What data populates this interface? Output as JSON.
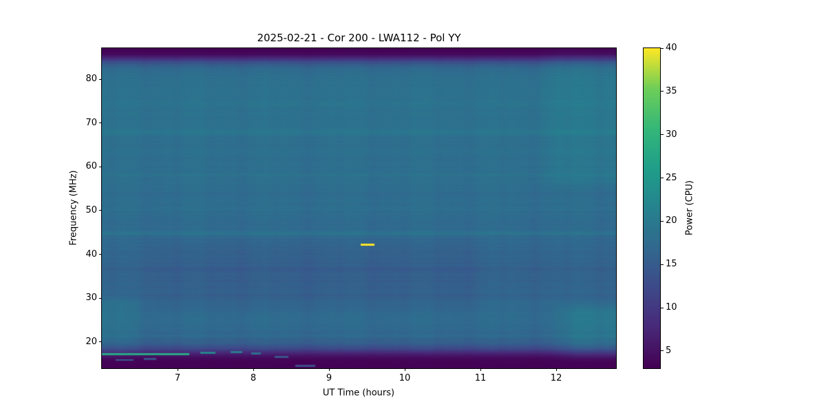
{
  "chart_data": {
    "type": "heatmap",
    "title": "2025-02-21 - Cor 200 - LWA112 - Pol YY",
    "xlabel": "UT Time (hours)",
    "ylabel": "Frequency (MHz)",
    "colorbar_label": "Power (CPU)",
    "x_range": [
      6.0,
      12.79
    ],
    "y_range": [
      14.0,
      87.1
    ],
    "x_ticks": [
      7,
      8,
      9,
      10,
      11,
      12
    ],
    "y_ticks": [
      20,
      30,
      40,
      50,
      60,
      70,
      80
    ],
    "colorbar_ticks": [
      5,
      10,
      15,
      20,
      25,
      30,
      35,
      40
    ],
    "value_range": [
      3,
      40
    ],
    "colormap": "viridis",
    "colormap_stops": [
      {
        "t": 0.0,
        "color": "#440154"
      },
      {
        "t": 0.125,
        "color": "#482878"
      },
      {
        "t": 0.25,
        "color": "#3e4989"
      },
      {
        "t": 0.375,
        "color": "#31688e"
      },
      {
        "t": 0.5,
        "color": "#26828e"
      },
      {
        "t": 0.625,
        "color": "#1f9e89"
      },
      {
        "t": 0.75,
        "color": "#35b779"
      },
      {
        "t": 0.875,
        "color": "#6ece58"
      },
      {
        "t": 1.0,
        "color": "#fde725"
      }
    ],
    "background": "#ffffff",
    "text_color": "#000000",
    "base_profile": [
      {
        "freq": 14.0,
        "power": 3.2
      },
      {
        "freq": 15.6,
        "power": 3.3
      },
      {
        "freq": 16.4,
        "power": 4.2
      },
      {
        "freq": 17.1,
        "power": 6.0
      },
      {
        "freq": 17.8,
        "power": 9.0
      },
      {
        "freq": 18.6,
        "power": 12.5
      },
      {
        "freq": 19.6,
        "power": 15.0
      },
      {
        "freq": 21.0,
        "power": 16.4
      },
      {
        "freq": 23.0,
        "power": 17.2
      },
      {
        "freq": 26.0,
        "power": 17.6
      },
      {
        "freq": 28.5,
        "power": 17.0
      },
      {
        "freq": 32.0,
        "power": 16.4
      },
      {
        "freq": 36.0,
        "power": 16.1
      },
      {
        "freq": 40.0,
        "power": 16.5
      },
      {
        "freq": 43.5,
        "power": 17.1
      },
      {
        "freq": 47.0,
        "power": 17.5
      },
      {
        "freq": 52.0,
        "power": 17.7
      },
      {
        "freq": 57.0,
        "power": 17.9
      },
      {
        "freq": 62.0,
        "power": 18.1
      },
      {
        "freq": 67.0,
        "power": 18.3
      },
      {
        "freq": 72.0,
        "power": 18.5
      },
      {
        "freq": 77.0,
        "power": 18.6
      },
      {
        "freq": 80.5,
        "power": 18.2
      },
      {
        "freq": 82.5,
        "power": 17.2
      },
      {
        "freq": 83.8,
        "power": 13.5
      },
      {
        "freq": 84.9,
        "power": 7.5
      },
      {
        "freq": 85.7,
        "power": 4.0
      },
      {
        "freq": 87.1,
        "power": 3.0
      }
    ],
    "stripes": [
      {
        "freq": 44.8,
        "sigma": 0.5,
        "delta": 1.8
      },
      {
        "freq": 68.0,
        "sigma": 0.6,
        "delta": 1.2
      },
      {
        "freq": 58.2,
        "sigma": 0.5,
        "delta": 0.9
      },
      {
        "freq": 50.5,
        "sigma": 0.4,
        "delta": 0.6
      },
      {
        "freq": 74.5,
        "sigma": 0.5,
        "delta": 0.6
      },
      {
        "freq": 36.8,
        "sigma": 0.45,
        "delta": -0.7
      },
      {
        "freq": 30.5,
        "sigma": 0.4,
        "delta": -0.5
      },
      {
        "freq": 21.3,
        "sigma": 0.4,
        "delta": 0.6
      },
      {
        "freq": 63.5,
        "sigma": 0.4,
        "delta": 0.5
      }
    ],
    "patches": [
      {
        "f_lo": 16.5,
        "f_hi": 28.0,
        "t_start": 12.1,
        "t_end": 13.4,
        "delta": 2.4
      },
      {
        "f_lo": 56.0,
        "f_hi": 86.0,
        "t_start": 11.85,
        "t_end": 13.4,
        "delta": 1.3
      },
      {
        "f_lo": 27.0,
        "f_hi": 43.0,
        "t_start": 6.7,
        "t_end": 11.0,
        "delta": -0.7
      },
      {
        "f_lo": 16.5,
        "f_hi": 30.0,
        "t_start": 5.4,
        "t_end": 6.45,
        "delta": 1.2
      }
    ],
    "features": [
      {
        "freq": 17.2,
        "halfwidth": 0.26,
        "t_start": 6.0,
        "t_end": 7.15,
        "power": 28
      },
      {
        "freq": 17.5,
        "halfwidth": 0.2,
        "t_start": 7.3,
        "t_end": 7.5,
        "power": 22
      },
      {
        "freq": 17.7,
        "halfwidth": 0.2,
        "t_start": 7.7,
        "t_end": 7.85,
        "power": 20
      },
      {
        "freq": 17.4,
        "halfwidth": 0.18,
        "t_start": 7.97,
        "t_end": 8.1,
        "power": 18
      },
      {
        "freq": 15.9,
        "halfwidth": 0.2,
        "t_start": 6.18,
        "t_end": 6.42,
        "power": 15
      },
      {
        "freq": 16.1,
        "halfwidth": 0.18,
        "t_start": 6.55,
        "t_end": 6.72,
        "power": 13
      },
      {
        "freq": 16.6,
        "halfwidth": 0.18,
        "t_start": 8.28,
        "t_end": 8.46,
        "power": 14
      },
      {
        "freq": 14.5,
        "halfwidth": 0.24,
        "t_start": 8.55,
        "t_end": 8.82,
        "power": 13
      },
      {
        "freq": 42.2,
        "halfwidth": 0.22,
        "t_start": 9.42,
        "t_end": 9.6,
        "power": 40
      }
    ]
  }
}
